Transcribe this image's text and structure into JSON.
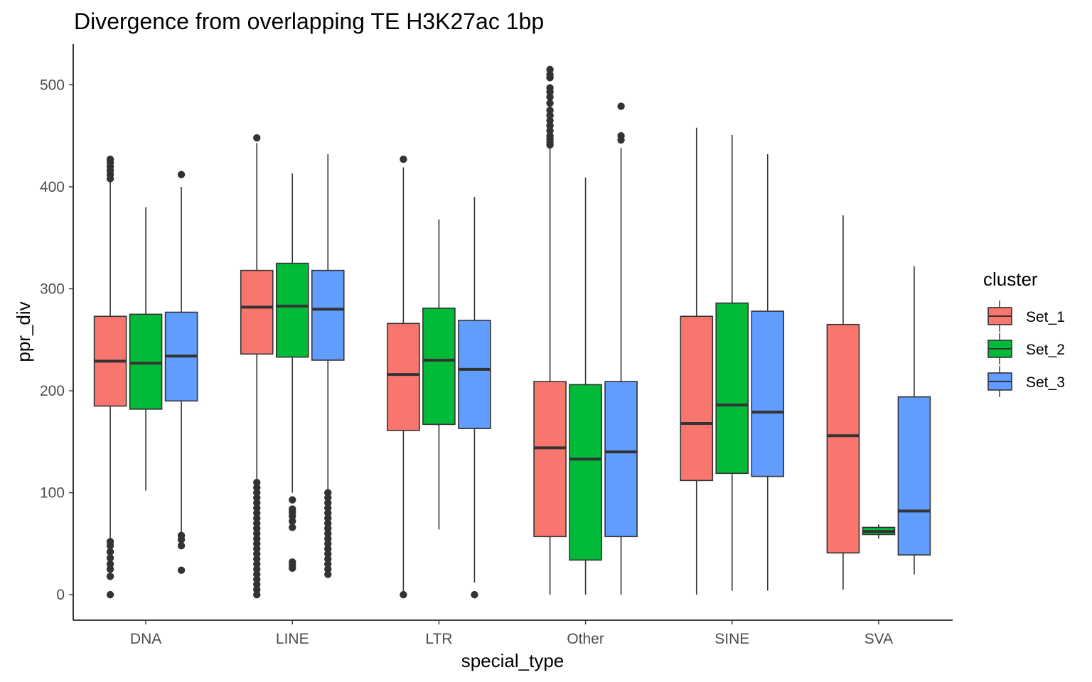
{
  "chart_data": {
    "type": "boxplot",
    "title": "Divergence from overlapping TE H3K27ac 1bp",
    "xlabel": "special_type",
    "ylabel": "ppr_div",
    "categories": [
      "DNA",
      "LINE",
      "LTR",
      "Other",
      "SINE",
      "SVA"
    ],
    "ylim": [
      -25,
      540
    ],
    "yticks": [
      0,
      100,
      200,
      300,
      400,
      500
    ],
    "legend": {
      "title": "cluster",
      "position": "right"
    },
    "series": [
      {
        "name": "Set_1",
        "color": "#F8766D",
        "boxes": [
          {
            "category": "DNA",
            "min": 55,
            "q1": 185,
            "median": 229,
            "q3": 273,
            "max": 406,
            "outliers": [
              0,
              18,
              25,
              30,
              36,
              42,
              48,
              52,
              408,
              412,
              416,
              420,
              424,
              427
            ]
          },
          {
            "category": "LINE",
            "min": 112,
            "q1": 236,
            "median": 282,
            "q3": 318,
            "max": 443,
            "outliers": [
              0,
              5,
              10,
              15,
              20,
              25,
              30,
              35,
              40,
              45,
              50,
              55,
              60,
              65,
              70,
              75,
              80,
              85,
              90,
              95,
              100,
              105,
              110,
              448
            ]
          },
          {
            "category": "LTR",
            "min": 2,
            "q1": 161,
            "median": 216,
            "q3": 266,
            "max": 419,
            "outliers": [
              0,
              427
            ]
          },
          {
            "category": "Other",
            "min": 0,
            "q1": 57,
            "median": 144,
            "q3": 209,
            "max": 438,
            "outliers": [
              441,
              444,
              447,
              450,
              455,
              460,
              465,
              470,
              475,
              482,
              488,
              493,
              497,
              507,
              510,
              515
            ]
          },
          {
            "category": "SINE",
            "min": 0,
            "q1": 112,
            "median": 168,
            "q3": 273,
            "max": 458,
            "outliers": []
          },
          {
            "category": "SVA",
            "min": 5,
            "q1": 41,
            "median": 156,
            "q3": 265,
            "max": 372,
            "outliers": []
          }
        ]
      },
      {
        "name": "Set_2",
        "color": "#00BA38",
        "boxes": [
          {
            "category": "DNA",
            "min": 102,
            "q1": 182,
            "median": 227,
            "q3": 275,
            "max": 380,
            "outliers": []
          },
          {
            "category": "LINE",
            "min": 100,
            "q1": 233,
            "median": 283,
            "q3": 325,
            "max": 413,
            "outliers": [
              26,
              29,
              32,
              66,
              72,
              77,
              81,
              84,
              93
            ]
          },
          {
            "category": "LTR",
            "min": 64,
            "q1": 167,
            "median": 230,
            "q3": 281,
            "max": 368,
            "outliers": []
          },
          {
            "category": "Other",
            "min": 0,
            "q1": 34,
            "median": 133,
            "q3": 206,
            "max": 409,
            "outliers": []
          },
          {
            "category": "SINE",
            "min": 4,
            "q1": 119,
            "median": 186,
            "q3": 286,
            "max": 451,
            "outliers": []
          },
          {
            "category": "SVA",
            "min": 55,
            "q1": 59,
            "median": 62,
            "q3": 66,
            "max": 69,
            "outliers": []
          }
        ]
      },
      {
        "name": "Set_3",
        "color": "#619CFF",
        "boxes": [
          {
            "category": "DNA",
            "min": 60,
            "q1": 190,
            "median": 234,
            "q3": 277,
            "max": 400,
            "outliers": [
              24,
              48,
              54,
              58,
              412
            ]
          },
          {
            "category": "LINE",
            "min": 102,
            "q1": 230,
            "median": 280,
            "q3": 318,
            "max": 432,
            "outliers": [
              20,
              25,
              30,
              35,
              40,
              45,
              50,
              55,
              60,
              65,
              70,
              75,
              80,
              85,
              90,
              95,
              100
            ]
          },
          {
            "category": "LTR",
            "min": 12,
            "q1": 163,
            "median": 221,
            "q3": 269,
            "max": 390,
            "outliers": [
              0
            ]
          },
          {
            "category": "Other",
            "min": 0,
            "q1": 57,
            "median": 140,
            "q3": 209,
            "max": 438,
            "outliers": [
              446,
              450,
              479
            ]
          },
          {
            "category": "SINE",
            "min": 4,
            "q1": 116,
            "median": 179,
            "q3": 278,
            "max": 432,
            "outliers": []
          },
          {
            "category": "SVA",
            "min": 20,
            "q1": 39,
            "median": 82,
            "q3": 194,
            "max": 322,
            "outliers": []
          }
        ]
      }
    ]
  }
}
